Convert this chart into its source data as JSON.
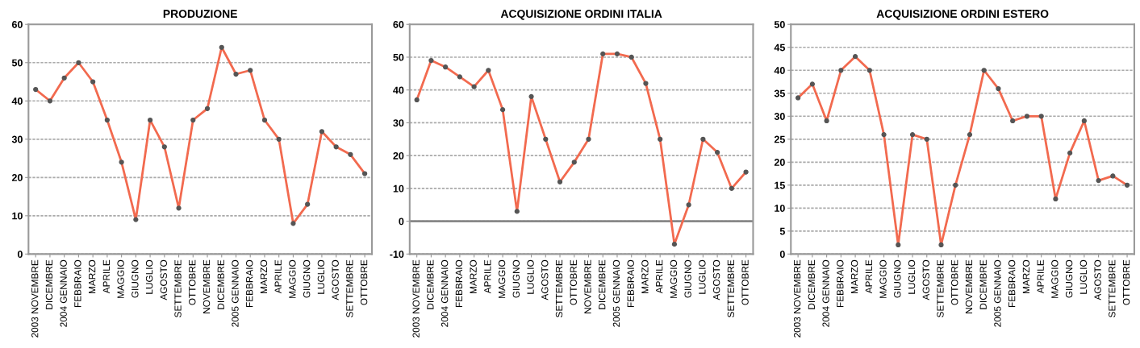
{
  "chart_data": [
    {
      "type": "line",
      "title": "PRODUZIONE",
      "categories": [
        "2003 NOVEMBRE",
        "DICEMBRE",
        "2004 GENNAIO",
        "FEBBRAIO",
        "MARZO",
        "APRILE",
        "MAGGIO",
        "GIUGNO",
        "LUGLIO",
        "AGOSTO",
        "SETTEMBRE",
        "OTTOBRE",
        "NOVEMBRE",
        "DICEMBRE",
        "2005 GENNAIO",
        "FEBBRAIO",
        "MARZO",
        "APRILE",
        "MAGGIO",
        "GIUGNO",
        "LUGLIO",
        "AGOSTO",
        "SETTEMBRE",
        "OTTOBRE"
      ],
      "series": [
        {
          "color": "#f26a4f",
          "values": [
            43,
            40,
            46,
            50,
            45,
            35,
            24,
            9,
            35,
            28,
            12,
            35,
            38,
            54,
            47,
            48,
            35,
            30,
            8,
            13,
            32,
            28,
            26,
            21
          ]
        }
      ],
      "ylim": [
        0,
        60
      ],
      "yticks": [
        0,
        10,
        20,
        30,
        40,
        50,
        60
      ],
      "grid": "y",
      "marker": "circle",
      "line_style": "solid"
    },
    {
      "type": "line",
      "title": "ACQUISIZIONE ORDINI ITALIA",
      "categories": [
        "2003 NOVEMBRE",
        "DICEMBRE",
        "2004 GENNAIO",
        "FEBBRAIO",
        "MARZO",
        "APRILE",
        "MAGGIO",
        "GIUGNO",
        "LUGLIO",
        "AGOSTO",
        "SETTEMBRE",
        "OTTOBRE",
        "NOVEMBRE",
        "DICEMBRE",
        "2005 GENNAIO",
        "FEBBRAIO",
        "MARZO",
        "APRILE",
        "MAGGIO",
        "GIUGNO",
        "LUGLIO",
        "AGOSTO",
        "SETTEMBRE",
        "OTTOBRE"
      ],
      "series": [
        {
          "color": "#f26a4f",
          "values": [
            37,
            49,
            47,
            44,
            41,
            46,
            34,
            3,
            38,
            25,
            12,
            18,
            25,
            51,
            51,
            50,
            42,
            25,
            -7,
            5,
            25,
            21,
            10,
            15
          ]
        }
      ],
      "ylim": [
        -10,
        60
      ],
      "yticks": [
        -10,
        0,
        10,
        20,
        30,
        40,
        50,
        60
      ],
      "grid": "y",
      "marker": "circle",
      "line_style": "solid",
      "ref_lines": [
        {
          "axis": "y",
          "value": 0,
          "color": "#888888"
        }
      ]
    },
    {
      "type": "line",
      "title": "ACQUISIZIONE ORDINI ESTERO",
      "categories": [
        "2003 NOVEMBRE",
        "DICEMBRE",
        "2004 GENNAIO",
        "FEBBRAIO",
        "MARZO",
        "APRILE",
        "MAGGIO",
        "GIUGNO",
        "LUGLIO",
        "AGOSTO",
        "SETTEMBRE",
        "OTTOBRE",
        "NOVEMBRE",
        "DICEMBRE",
        "2005 GENNAIO",
        "FEBBRAIO",
        "MARZO",
        "APRILE",
        "MAGGIO",
        "GIUGNO",
        "LUGLIO",
        "AGOSTO",
        "SETTEMBRE",
        "OTTOBRE"
      ],
      "series": [
        {
          "color": "#f26a4f",
          "values": [
            34,
            37,
            29,
            40,
            43,
            40,
            26,
            2,
            26,
            25,
            2,
            15,
            26,
            40,
            36,
            29,
            30,
            30,
            12,
            22,
            29,
            16,
            17,
            15
          ]
        }
      ],
      "ylim": [
        0,
        50
      ],
      "yticks": [
        0,
        5,
        10,
        15,
        20,
        25,
        30,
        35,
        40,
        45,
        50
      ],
      "grid": "y",
      "marker": "circle",
      "line_style": "solid"
    }
  ]
}
